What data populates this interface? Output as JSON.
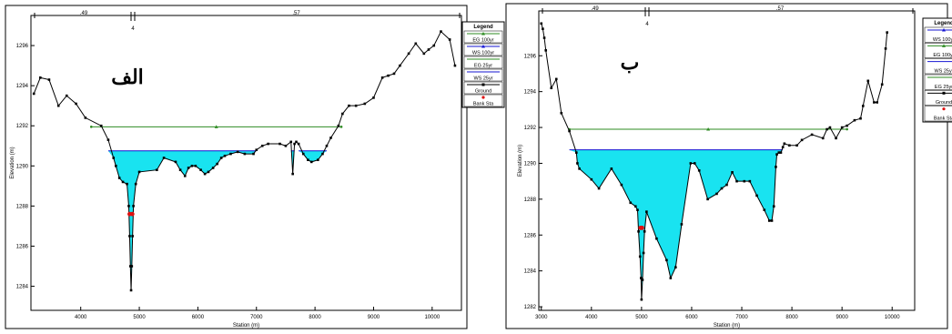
{
  "chart_data": [
    {
      "type": "area",
      "panel_label": "الف",
      "xlabel": "Station (m)",
      "ylabel": "Elevation (m)",
      "xlim": [
        3150,
        10500
      ],
      "ylim": [
        1282.8,
        1297.5
      ],
      "xticks": [
        4000,
        5000,
        6000,
        7000,
        8000,
        9000,
        10000
      ],
      "yticks": [
        1284,
        1286,
        1288,
        1290,
        1292,
        1294,
        1296
      ],
      "reach_lengths": [
        ".49",
        ".57"
      ],
      "river_station": "4",
      "legend": {
        "title": "Legend",
        "entries": [
          {
            "label": "EG 100yr",
            "color": "#2e8b22",
            "marker": "triangle"
          },
          {
            "label": "WS 100yr",
            "color": "#1414d2",
            "marker": "triangle"
          },
          {
            "label": "EG 25yr",
            "color": "#2e8b22",
            "marker": "none"
          },
          {
            "label": "WS 25yr",
            "color": "#1414d2",
            "marker": "none"
          },
          {
            "label": "Ground",
            "color": "#000000",
            "marker": "square"
          },
          {
            "label": "Bank Sta",
            "color": "#e01010",
            "marker": "circle"
          }
        ]
      },
      "ws_elevation": 1290.75,
      "eg_elevation": 1291.95,
      "eg_x": [
        4180,
        8450
      ],
      "water_fill_color": "#19e3f0",
      "ground": {
        "x": [
          3200,
          3310,
          3460,
          3620,
          3760,
          3920,
          4080,
          4350,
          4470,
          4560,
          4600,
          4660,
          4720,
          4790,
          4820,
          4835,
          4848,
          4860,
          4872,
          4885,
          4900,
          4940,
          5000,
          5300,
          5420,
          5620,
          5700,
          5780,
          5840,
          5900,
          5960,
          6050,
          6120,
          6180,
          6260,
          6330,
          6400,
          6460,
          6560,
          6680,
          6800,
          6950,
          7000,
          7100,
          7200,
          7400,
          7500,
          7590,
          7620,
          7650,
          7680,
          7720,
          7800,
          7880,
          7940,
          8050,
          8130,
          8200,
          8270,
          8400,
          8470,
          8580,
          8700,
          8850,
          9000,
          9150,
          9250,
          9350,
          9450,
          9600,
          9720,
          9860,
          9940,
          10030,
          10150,
          10300,
          10390
        ],
        "y": [
          1293.6,
          1294.4,
          1294.3,
          1293.0,
          1293.5,
          1293.1,
          1292.4,
          1292.0,
          1291.3,
          1290.4,
          1290.0,
          1289.4,
          1289.2,
          1289.1,
          1288.0,
          1286.5,
          1285.0,
          1283.8,
          1285.0,
          1286.5,
          1288.0,
          1289.1,
          1289.7,
          1289.8,
          1290.4,
          1290.2,
          1289.8,
          1289.5,
          1289.9,
          1290.0,
          1290.0,
          1289.8,
          1289.6,
          1289.7,
          1289.9,
          1290.1,
          1290.4,
          1290.5,
          1290.6,
          1290.7,
          1290.6,
          1290.6,
          1290.8,
          1291.0,
          1291.1,
          1291.1,
          1291.0,
          1291.2,
          1289.6,
          1291.1,
          1291.2,
          1291.1,
          1290.6,
          1290.3,
          1290.2,
          1290.3,
          1290.6,
          1291.0,
          1291.4,
          1292.0,
          1292.6,
          1293.0,
          1293.0,
          1293.1,
          1293.4,
          1294.4,
          1294.5,
          1294.6,
          1295.0,
          1295.6,
          1296.1,
          1295.6,
          1295.8,
          1296.0,
          1296.7,
          1296.3,
          1295.0
        ]
      },
      "bank_stations": [
        {
          "x": 4835,
          "y": 1287.6
        },
        {
          "x": 4880,
          "y": 1287.6
        }
      ],
      "legend_boxes": 6
    },
    {
      "type": "area",
      "panel_label": "ب",
      "xlabel": "Station (m)",
      "ylabel": "Elevation (m)",
      "xlim": [
        2950,
        10450
      ],
      "ylim": [
        1281.8,
        1298.5
      ],
      "xticks": [
        3000,
        4000,
        5000,
        6000,
        7000,
        8000,
        9000,
        10000
      ],
      "yticks": [
        1282,
        1284,
        1286,
        1288,
        1290,
        1292,
        1294,
        1296
      ],
      "reach_lengths": [
        ".49",
        ".57"
      ],
      "river_station": "4",
      "legend": {
        "title": "Legend",
        "entries": [
          {
            "label": "WS 100yr",
            "color": "#1414d2",
            "marker": "triangle"
          },
          {
            "label": "EG 100yr",
            "color": "#2e8b22",
            "marker": "triangle"
          },
          {
            "label": "WS 25yr",
            "color": "#1414d2",
            "marker": "none"
          },
          {
            "label": "EG 25yr",
            "color": "#2e8b22",
            "marker": "none"
          },
          {
            "label": "Ground",
            "color": "#000000",
            "marker": "square"
          },
          {
            "label": "Bank Sta",
            "color": "#e01010",
            "marker": "circle"
          }
        ]
      },
      "ws_elevation": 1290.75,
      "eg_elevation": 1291.9,
      "eg_x": [
        3560,
        9100
      ],
      "water_fill_color": "#19e3f0",
      "ground": {
        "x": [
          3000,
          3030,
          3060,
          3090,
          3200,
          3300,
          3400,
          3560,
          3700,
          3720,
          3760,
          4000,
          4150,
          4400,
          4600,
          4780,
          4880,
          4920,
          4940,
          4970,
          4990,
          5000,
          5020,
          5040,
          5060,
          5100,
          5300,
          5500,
          5580,
          5680,
          5800,
          5980,
          6060,
          6150,
          6320,
          6500,
          6600,
          6700,
          6810,
          6900,
          7050,
          7160,
          7300,
          7450,
          7550,
          7600,
          7640,
          7680,
          7700,
          7740,
          7780,
          7820,
          7850,
          7950,
          8100,
          8200,
          8400,
          8620,
          8700,
          8760,
          8880,
          9000,
          9100,
          9250,
          9370,
          9420,
          9520,
          9640,
          9700,
          9800,
          9870,
          9900
        ],
        "y": [
          1297.8,
          1297.5,
          1297.0,
          1296.3,
          1294.2,
          1294.7,
          1292.8,
          1291.8,
          1290.6,
          1290.0,
          1289.7,
          1289.1,
          1288.6,
          1289.7,
          1288.8,
          1287.8,
          1287.6,
          1287.4,
          1286.2,
          1284.8,
          1283.6,
          1282.4,
          1283.5,
          1285.0,
          1286.2,
          1287.3,
          1285.8,
          1284.6,
          1283.6,
          1284.2,
          1286.6,
          1290.0,
          1290.0,
          1289.6,
          1288.0,
          1288.3,
          1288.6,
          1288.8,
          1289.5,
          1289.0,
          1289.0,
          1289.0,
          1288.2,
          1287.4,
          1286.8,
          1286.8,
          1287.6,
          1289.8,
          1290.5,
          1290.6,
          1290.6,
          1290.9,
          1291.1,
          1291.0,
          1291.0,
          1291.3,
          1291.6,
          1291.4,
          1291.9,
          1292.0,
          1291.4,
          1292.0,
          1292.1,
          1292.4,
          1292.5,
          1293.2,
          1294.6,
          1293.4,
          1293.4,
          1294.4,
          1296.4,
          1297.3
        ],
        "bank_stations": []
      },
      "bank_stations": [
        {
          "x": 4980,
          "y": 1286.4
        },
        {
          "x": 5010,
          "y": 1286.4
        }
      ],
      "legend_boxes": 6
    }
  ]
}
